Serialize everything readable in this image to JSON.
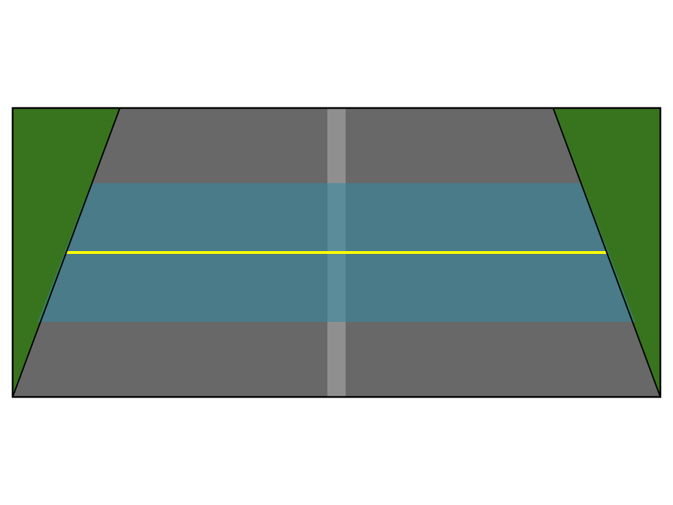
{
  "scene": {
    "colors": {
      "background": "#ffffff",
      "grass": "#38741e",
      "road": "#686868",
      "center_stripe": "#8f8f8f",
      "band": "#2f8aa3",
      "band_opacity": 0.55,
      "horizon_line": "#ffff00",
      "outline": "#000000"
    },
    "elements": [
      "grass-left",
      "grass-right",
      "road-surface",
      "center-stripe",
      "blue-band",
      "yellow-line",
      "frame-border"
    ]
  }
}
